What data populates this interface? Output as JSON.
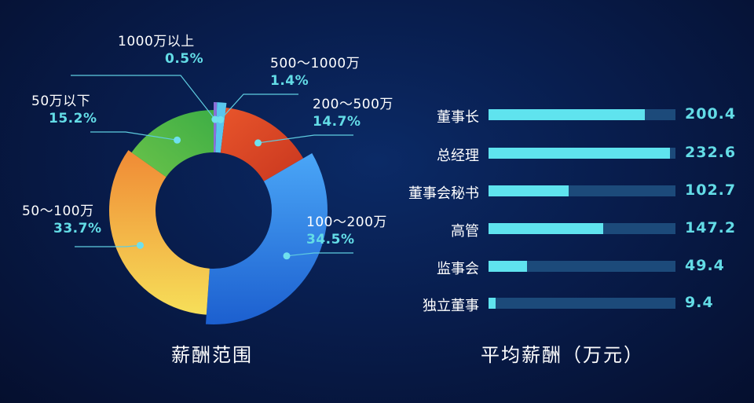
{
  "colors": {
    "green": "#4cb848",
    "orange": "#f2a03d",
    "blue": "#2f80e8",
    "red": "#e04a2a",
    "sky": "#59c6ee",
    "purple": "#8a6fd8",
    "bar_fill": "#5fe3ee",
    "bar_track": "#1c4a7a",
    "accent_text": "#63dce6"
  },
  "chart_data": [
    {
      "type": "pie",
      "title": "薪酬范围",
      "donut": true,
      "slices": [
        {
          "name": "1000万以上",
          "label": "0.5%",
          "value": 0.5
        },
        {
          "name": "500～1000万",
          "label": "1.4%",
          "value": 1.4
        },
        {
          "name": "200～500万",
          "label": "14.7%",
          "value": 14.7
        },
        {
          "name": "100～200万",
          "label": "34.5%",
          "value": 34.5
        },
        {
          "name": "50～100万",
          "label": "33.7%",
          "value": 33.7
        },
        {
          "name": "50万以下",
          "label": "15.2%",
          "value": 15.2
        }
      ]
    },
    {
      "type": "bar",
      "orientation": "horizontal",
      "title": "平均薪酬（万元）",
      "categories": [
        "董事长",
        "总经理",
        "董事会秘书",
        "高管",
        "监事会",
        "独立董事"
      ],
      "values": [
        200.4,
        232.6,
        102.7,
        147.2,
        49.4,
        9.4
      ],
      "value_labels": [
        "200.4",
        "232.6",
        "102.7",
        "147.2",
        "49.4",
        "9.4"
      ],
      "xlim": [
        0,
        240
      ]
    }
  ]
}
